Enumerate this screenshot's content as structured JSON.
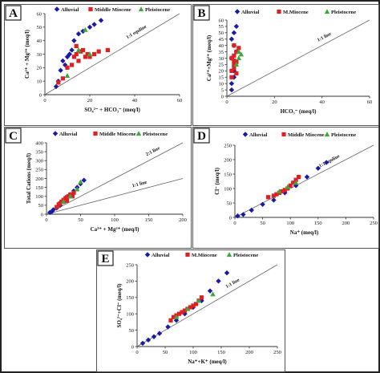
{
  "figure_panels": [
    "A",
    "B",
    "C",
    "D",
    "E"
  ],
  "colors": {
    "alluvial": "#1a1aa8",
    "miocene": "#e02020",
    "pleistocene": "#3aa83a",
    "line": "#666666"
  },
  "chart_data": [
    {
      "panel": "A",
      "type": "scatter",
      "xlabel": "SO₄²⁻ + HCO₃⁻  (meq/l)",
      "ylabel": "Ca²⁺ + Mg²⁺ (meq/l)",
      "xlim": [
        0,
        60
      ],
      "ylim": [
        0,
        60
      ],
      "xticks": [
        0,
        20,
        40,
        60
      ],
      "yticks": [
        0,
        10,
        20,
        30,
        40,
        50,
        60
      ],
      "legend": [
        "Alluvial",
        "Middle Miocene",
        "Pleistocene"
      ],
      "ref_lines": [
        {
          "label": "1:1 equline",
          "slope": 1
        }
      ],
      "series": [
        {
          "name": "Alluvial",
          "marker": "diamond",
          "x": [
            5,
            6,
            7,
            8,
            9,
            10,
            11,
            12,
            13,
            15,
            17,
            20,
            22,
            25
          ],
          "y": [
            6,
            10,
            18,
            25,
            22,
            28,
            30,
            33,
            40,
            45,
            47,
            50,
            52,
            55
          ]
        },
        {
          "name": "Middle Miocene",
          "marker": "square",
          "x": [
            6,
            8,
            10,
            12,
            13,
            14,
            15,
            16,
            17,
            18,
            19,
            20,
            22,
            24,
            28,
            14
          ],
          "y": [
            9,
            12,
            20,
            22,
            28,
            30,
            25,
            32,
            33,
            28,
            30,
            28,
            30,
            32,
            33,
            36
          ]
        },
        {
          "name": "Pleistocene",
          "marker": "triangle",
          "x": [
            10,
            15,
            20,
            18
          ],
          "y": [
            14,
            33,
            30,
            48
          ]
        }
      ]
    },
    {
      "panel": "B",
      "type": "scatter",
      "xlabel": "HCO₃⁻  (meq/l)",
      "ylabel": "Ca²⁺+Mg²⁺ (meq/l)",
      "xlim": [
        0,
        60
      ],
      "ylim": [
        0,
        60
      ],
      "xticks": [
        0,
        20,
        40,
        60
      ],
      "yticks": [
        0,
        5,
        10,
        15,
        20,
        25,
        30,
        35,
        40,
        45,
        50,
        55,
        60
      ],
      "legend": [
        "Alluvial",
        "M.Miocene",
        "Pleistocene"
      ],
      "ref_lines": [
        {
          "label": "1:1 line",
          "slope": 1
        }
      ],
      "series": [
        {
          "name": "Alluvial",
          "marker": "diamond",
          "x": [
            2,
            2,
            3,
            3,
            2,
            4,
            3,
            2,
            3,
            4
          ],
          "y": [
            5,
            10,
            15,
            20,
            30,
            35,
            40,
            45,
            50,
            55
          ]
        },
        {
          "name": "M.Miocene",
          "marker": "square",
          "x": [
            2,
            2,
            3,
            3,
            4,
            3,
            2,
            3,
            4,
            5,
            3,
            4
          ],
          "y": [
            15,
            20,
            22,
            25,
            27,
            28,
            30,
            32,
            35,
            38,
            40,
            18
          ]
        },
        {
          "name": "Pleistocene",
          "marker": "triangle",
          "x": [
            4,
            5,
            6,
            5
          ],
          "y": [
            25,
            30,
            33,
            35
          ]
        }
      ]
    },
    {
      "panel": "C",
      "type": "scatter",
      "xlabel": "Ca²⁺ + Mg²⁺ (meq/l)",
      "ylabel": "Total Cations (meq/l)",
      "xlim": [
        0,
        200
      ],
      "ylim": [
        0,
        400
      ],
      "xticks": [
        0,
        50,
        100,
        150,
        200
      ],
      "yticks": [
        0,
        50,
        100,
        150,
        200,
        250,
        300,
        350,
        400
      ],
      "legend": [
        "Alluvial",
        "Middle Miocene",
        "Pleistocene"
      ],
      "ref_lines": [
        {
          "label": "2:1 line",
          "slope": 2
        },
        {
          "label": "1:1 line",
          "slope": 1
        }
      ],
      "series": [
        {
          "name": "Alluvial",
          "marker": "diamond",
          "x": [
            5,
            8,
            10,
            15,
            20,
            25,
            30,
            35,
            40,
            45,
            50,
            55
          ],
          "y": [
            10,
            15,
            25,
            35,
            50,
            70,
            90,
            110,
            130,
            150,
            170,
            190
          ]
        },
        {
          "name": "Middle Miocene",
          "marker": "square",
          "x": [
            15,
            18,
            20,
            22,
            25,
            28,
            30,
            32,
            35,
            38,
            40,
            30
          ],
          "y": [
            40,
            55,
            60,
            70,
            80,
            90,
            95,
            100,
            110,
            100,
            120,
            75
          ]
        },
        {
          "name": "Pleistocene",
          "marker": "triangle",
          "x": [
            25,
            35,
            45,
            50
          ],
          "y": [
            70,
            100,
            140,
            180
          ]
        }
      ]
    },
    {
      "panel": "D",
      "type": "scatter",
      "xlabel": "Na⁺    (meq/l)",
      "ylabel": "Cl⁻  (meq/l)",
      "xlim": [
        0,
        250
      ],
      "ylim": [
        0,
        250
      ],
      "xticks": [
        0,
        50,
        100,
        150,
        200,
        250
      ],
      "yticks": [
        0,
        50,
        100,
        150,
        200,
        250
      ],
      "legend": [
        "Alluvial",
        "Middle Miocene",
        "Pleistocene"
      ],
      "ref_lines": [
        {
          "label": "1:1 equline",
          "slope": 1
        }
      ],
      "series": [
        {
          "name": "Alluvial",
          "marker": "diamond",
          "x": [
            5,
            15,
            30,
            50,
            70,
            90,
            110,
            130,
            150,
            165
          ],
          "y": [
            5,
            10,
            25,
            45,
            60,
            85,
            110,
            140,
            170,
            190
          ]
        },
        {
          "name": "Middle Miocene",
          "marker": "square",
          "x": [
            60,
            70,
            75,
            80,
            85,
            90,
            95,
            100,
            105,
            110,
            115
          ],
          "y": [
            70,
            75,
            80,
            85,
            90,
            95,
            100,
            110,
            120,
            130,
            140
          ]
        },
        {
          "name": "Pleistocene",
          "marker": "triangle",
          "x": [
            80,
            95,
            110
          ],
          "y": [
            90,
            105,
            120
          ]
        }
      ]
    },
    {
      "panel": "E",
      "type": "scatter",
      "xlabel": "Na⁺+K⁺  (meq/l)",
      "ylabel": "SO₄²⁻+Cl⁻ (meq/l)",
      "xlim": [
        0,
        250
      ],
      "ylim": [
        0,
        250
      ],
      "xticks": [
        0,
        50,
        100,
        150,
        200,
        250
      ],
      "yticks": [
        0,
        50,
        100,
        150,
        200,
        250
      ],
      "legend": [
        "Alluvial",
        "M.Miocene",
        "Pleistocene"
      ],
      "ref_lines": [
        {
          "label": "1:1 line",
          "slope": 1
        }
      ],
      "series": [
        {
          "name": "Alluvial",
          "marker": "diamond",
          "x": [
            10,
            20,
            30,
            40,
            55,
            70,
            85,
            100,
            115,
            130,
            145,
            160
          ],
          "y": [
            10,
            20,
            30,
            40,
            60,
            80,
            100,
            120,
            140,
            170,
            200,
            225
          ]
        },
        {
          "name": "M.Miocene",
          "marker": "square",
          "x": [
            60,
            65,
            70,
            75,
            80,
            85,
            90,
            95,
            100,
            105,
            110,
            115
          ],
          "y": [
            80,
            90,
            95,
            100,
            105,
            110,
            115,
            120,
            125,
            130,
            140,
            150
          ]
        },
        {
          "name": "Pleistocene",
          "marker": "triangle",
          "x": [
            70,
            90,
            110,
            135
          ],
          "y": [
            90,
            115,
            140,
            160
          ]
        }
      ]
    }
  ]
}
